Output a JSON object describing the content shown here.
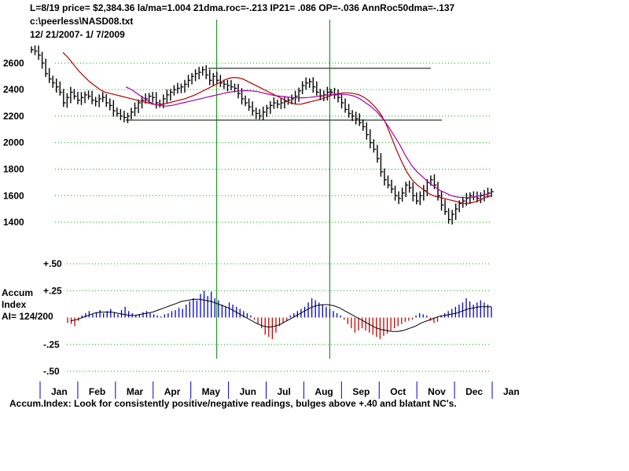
{
  "header": {
    "line1": "L=8/19  price= $2,384.36  la/ma=1.004 21dma.roc=-.213 IP21= .086 OP=-.036 AnnRoc50dma=-.137",
    "line2": "c:\\peerless\\NASD08.txt",
    "line3": " 12/ 21/2007- 1/ 7/2009"
  },
  "footer": "Accum.Index: Look for consistently positive/negative readings, bulges above +.40 and blatant NC's.",
  "accum_label": {
    "title_line1": "Accum",
    "title_line2": "Index",
    "ai": "AI= 124/200"
  },
  "colors": {
    "price_bars": "#000000",
    "ma_short": "#b00000",
    "ma_long": "#aa00aa",
    "grid": "#00aa00",
    "vertical_markers": "#008000",
    "accum_positive": "#0000cc",
    "accum_negative": "#cc0000",
    "accum_ma": "#000000",
    "month_ticks": "#0000cc"
  },
  "chart_data": [
    {
      "type": "line",
      "subtype": "ohlc-bars",
      "ylim": [
        1300,
        2720
      ],
      "y_ticks": [
        "2600",
        "2400",
        "2200",
        "2000",
        "1800",
        "1600",
        "1400"
      ],
      "y_tick_values": [
        2600,
        2400,
        2200,
        2000,
        1800,
        1600,
        1400
      ],
      "x_labels": [
        "Jan",
        "Feb",
        "Mar",
        "Apr",
        "May",
        "Jun",
        "Jul",
        "Aug",
        "Sep",
        "Oct",
        "Nov",
        "Dec",
        "Jan"
      ],
      "grid": "horizontal dotted",
      "close_by_month": [
        2640,
        2330,
        2280,
        2300,
        2480,
        2430,
        2250,
        2380,
        2200,
        1640,
        1500,
        1590,
        1630
      ],
      "series_close": [
        2700,
        2690,
        2660,
        2600,
        2520,
        2480,
        2450,
        2420,
        2380,
        2300,
        2340,
        2380,
        2350,
        2320,
        2340,
        2360,
        2350,
        2320,
        2310,
        2330,
        2340,
        2300,
        2280,
        2240,
        2220,
        2200,
        2190,
        2200,
        2230,
        2260,
        2300,
        2320,
        2330,
        2350,
        2340,
        2300,
        2290,
        2330,
        2360,
        2380,
        2400,
        2410,
        2420,
        2440,
        2470,
        2500,
        2520,
        2530,
        2550,
        2510,
        2470,
        2500,
        2470,
        2450,
        2440,
        2430,
        2420,
        2410,
        2370,
        2330,
        2300,
        2270,
        2240,
        2220,
        2200,
        2230,
        2260,
        2280,
        2300,
        2290,
        2300,
        2310,
        2320,
        2330,
        2350,
        2390,
        2430,
        2450,
        2460,
        2420,
        2380,
        2350,
        2360,
        2380,
        2380,
        2360,
        2340,
        2300,
        2250,
        2220,
        2200,
        2180,
        2150,
        2120,
        2060,
        2000,
        1950,
        1880,
        1780,
        1720,
        1680,
        1650,
        1600,
        1580,
        1620,
        1680,
        1660,
        1600,
        1560,
        1600,
        1640,
        1700,
        1720,
        1680,
        1600,
        1530,
        1480,
        1420,
        1460,
        1500,
        1540,
        1560,
        1580,
        1600,
        1590,
        1580,
        1600,
        1610,
        1620,
        1630
      ],
      "series": [
        {
          "role": "short moving average",
          "values": [
            2680,
            2640,
            2590,
            2540,
            2500,
            2460,
            2430,
            2400,
            2380,
            2370,
            2360,
            2350,
            2340,
            2330,
            2320,
            2310,
            2300,
            2290,
            2285,
            2290,
            2300,
            2310,
            2320,
            2330,
            2345,
            2360,
            2380,
            2400,
            2420,
            2440,
            2460,
            2480,
            2490,
            2490,
            2480,
            2460,
            2440,
            2420,
            2400,
            2380,
            2360,
            2340,
            2320,
            2300,
            2290,
            2290,
            2300,
            2310,
            2320,
            2330,
            2345,
            2360,
            2370,
            2375,
            2375,
            2370,
            2360,
            2340,
            2310,
            2270,
            2220,
            2150,
            2050,
            1950,
            1860,
            1780,
            1720,
            1680,
            1650,
            1620,
            1600,
            1590,
            1580,
            1570,
            1560,
            1550,
            1540,
            1545,
            1555,
            1570,
            1590,
            1600
          ]
        },
        {
          "role": "long moving average",
          "values": [
            2420,
            2400,
            2370,
            2340,
            2310,
            2290,
            2280,
            2275,
            2280,
            2290,
            2300,
            2310,
            2320,
            2330,
            2340,
            2350,
            2360,
            2370,
            2380,
            2385,
            2390,
            2392,
            2390,
            2385,
            2375,
            2365,
            2355,
            2350,
            2345,
            2340,
            2338,
            2338,
            2340,
            2345,
            2352,
            2358,
            2362,
            2365,
            2364,
            2360,
            2350,
            2330,
            2300,
            2270,
            2230,
            2180,
            2120,
            2050,
            1980,
            1900,
            1830,
            1780,
            1740,
            1700,
            1670,
            1640,
            1620,
            1600,
            1590,
            1585,
            1585,
            1590,
            1600,
            1610,
            1620
          ]
        }
      ],
      "horizontal_lines": [
        2560,
        2170
      ],
      "vertical_marker_months": [
        "May",
        "Aug"
      ]
    },
    {
      "type": "bar",
      "title": "Accum Index",
      "ylim": [
        -0.5,
        0.5
      ],
      "y_ticks": [
        "+.50",
        "+.25",
        "-.25",
        "-.50"
      ],
      "y_tick_values": [
        0.5,
        0.25,
        -0.25,
        -0.5
      ],
      "annotation": "AI= 124/200",
      "values": [
        -0.05,
        -0.06,
        -0.08,
        -0.03,
        0.02,
        0.04,
        0.06,
        0.03,
        0.05,
        0.07,
        0.04,
        0.06,
        0.08,
        0.05,
        0.03,
        0.07,
        0.1,
        0.06,
        0.04,
        0.02,
        0.03,
        0.05,
        0.06,
        0.04,
        0.03,
        0.02,
        0.01,
        0.03,
        0.04,
        0.06,
        0.07,
        0.09,
        0.08,
        0.12,
        0.15,
        0.18,
        0.16,
        0.22,
        0.25,
        0.2,
        0.24,
        0.18,
        0.16,
        0.12,
        0.1,
        0.14,
        0.12,
        0.1,
        0.08,
        0.06,
        0.04,
        0.02,
        -0.02,
        -0.06,
        -0.1,
        -0.16,
        -0.18,
        -0.2,
        -0.14,
        -0.08,
        -0.05,
        -0.03,
        0.02,
        0.04,
        0.06,
        0.08,
        0.1,
        0.14,
        0.18,
        0.16,
        0.14,
        0.12,
        0.1,
        0.08,
        0.06,
        0.04,
        0.02,
        -0.02,
        -0.06,
        -0.1,
        -0.14,
        -0.12,
        -0.1,
        -0.12,
        -0.14,
        -0.16,
        -0.18,
        -0.2,
        -0.17,
        -0.15,
        -0.12,
        -0.1,
        -0.08,
        -0.06,
        -0.04,
        -0.03,
        -0.02,
        0.02,
        0.04,
        0.03,
        0.02,
        -0.03,
        -0.05,
        -0.04,
        0.02,
        0.04,
        0.06,
        0.08,
        0.1,
        0.12,
        0.14,
        0.18,
        0.15,
        0.12,
        0.14,
        0.16,
        0.14,
        0.12,
        0.1
      ],
      "ma_values": [
        -0.03,
        -0.02,
        0.0,
        0.02,
        0.04,
        0.05,
        0.05,
        0.05,
        0.04,
        0.03,
        0.02,
        0.02,
        0.03,
        0.04,
        0.05,
        0.07,
        0.09,
        0.11,
        0.13,
        0.15,
        0.16,
        0.17,
        0.17,
        0.16,
        0.15,
        0.13,
        0.11,
        0.09,
        0.06,
        0.03,
        0.0,
        -0.03,
        -0.06,
        -0.08,
        -0.09,
        -0.08,
        -0.06,
        -0.03,
        0.0,
        0.03,
        0.06,
        0.09,
        0.11,
        0.12,
        0.12,
        0.11,
        0.09,
        0.06,
        0.03,
        0.0,
        -0.03,
        -0.06,
        -0.09,
        -0.11,
        -0.12,
        -0.13,
        -0.13,
        -0.12,
        -0.1,
        -0.08,
        -0.05,
        -0.03,
        -0.01,
        0.01,
        0.02,
        0.03,
        0.04,
        0.06,
        0.08,
        0.09,
        0.1,
        0.1,
        0.1
      ]
    }
  ]
}
